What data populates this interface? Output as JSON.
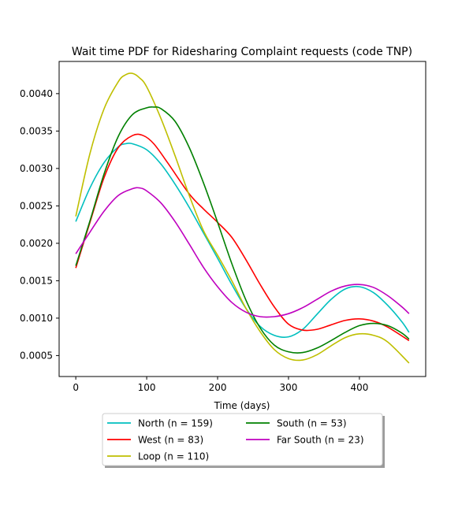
{
  "chart_data": {
    "type": "line",
    "title": "Wait time PDF for Ridesharing Complaint  requests (code TNP)",
    "xlabel": "Time (days)",
    "ylabel": "",
    "xlim": [
      -23.5,
      493.5
    ],
    "ylim": [
      0.00022,
      0.00443
    ],
    "x_ticks": [
      {
        "value": 0,
        "label": "0"
      },
      {
        "value": 100,
        "label": "100"
      },
      {
        "value": 200,
        "label": "200"
      },
      {
        "value": 300,
        "label": "300"
      },
      {
        "value": 400,
        "label": "400"
      }
    ],
    "y_ticks": [
      {
        "value": 0.0005,
        "label": "0.0005"
      },
      {
        "value": 0.001,
        "label": "0.0010"
      },
      {
        "value": 0.0015,
        "label": "0.0015"
      },
      {
        "value": 0.002,
        "label": "0.0020"
      },
      {
        "value": 0.0025,
        "label": "0.0025"
      },
      {
        "value": 0.003,
        "label": "0.0030"
      },
      {
        "value": 0.0035,
        "label": "0.0035"
      },
      {
        "value": 0.004,
        "label": "0.0040"
      }
    ],
    "grid": false,
    "legend_position": "below-center",
    "series": [
      {
        "name": "North (n = 159)",
        "color": "#00bfbf",
        "x": [
          0,
          20,
          40,
          60,
          70,
          80,
          100,
          120,
          140,
          160,
          180,
          200,
          220,
          240,
          260,
          280,
          300,
          320,
          340,
          360,
          380,
          400,
          420,
          440,
          460,
          470
        ],
        "y": [
          0.00229,
          0.00274,
          0.00308,
          0.00329,
          0.00333,
          0.00333,
          0.00325,
          0.00306,
          0.00279,
          0.00248,
          0.00214,
          0.0018,
          0.00145,
          0.00113,
          0.00089,
          0.00077,
          0.00075,
          0.00085,
          0.00105,
          0.00125,
          0.00139,
          0.00142,
          0.00134,
          0.00117,
          0.00095,
          0.00081
        ]
      },
      {
        "name": "West (n = 83)",
        "color": "#ff0000",
        "x": [
          0,
          20,
          40,
          60,
          80,
          95,
          110,
          130,
          160,
          180,
          200,
          220,
          240,
          260,
          280,
          300,
          320,
          340,
          360,
          380,
          400,
          420,
          440,
          470
        ],
        "y": [
          0.00167,
          0.00228,
          0.00288,
          0.00328,
          0.00344,
          0.00344,
          0.00333,
          0.00307,
          0.00266,
          0.00246,
          0.00228,
          0.00208,
          0.00178,
          0.00145,
          0.00115,
          0.00092,
          0.00084,
          0.00085,
          0.00091,
          0.00097,
          0.00099,
          0.00096,
          0.00088,
          0.0007
        ]
      },
      {
        "name": "Loop (n = 110)",
        "color": "#bfbf00",
        "x": [
          0,
          20,
          40,
          60,
          70,
          80,
          90,
          100,
          120,
          140,
          160,
          180,
          200,
          220,
          240,
          260,
          280,
          300,
          320,
          340,
          360,
          380,
          400,
          420,
          440,
          470
        ],
        "y": [
          0.00236,
          0.0032,
          0.0038,
          0.00416,
          0.00425,
          0.00427,
          0.00421,
          0.00409,
          0.00367,
          0.00317,
          0.00264,
          0.00217,
          0.00184,
          0.0015,
          0.00113,
          0.00082,
          0.00058,
          0.00046,
          0.00044,
          0.00051,
          0.00063,
          0.00074,
          0.00079,
          0.00077,
          0.00068,
          0.0004
        ]
      },
      {
        "name": "South (n = 53)",
        "color": "#008000",
        "x": [
          0,
          20,
          40,
          60,
          80,
          100,
          110,
          120,
          140,
          160,
          180,
          200,
          220,
          240,
          260,
          280,
          300,
          320,
          340,
          360,
          380,
          400,
          420,
          440,
          460,
          470
        ],
        "y": [
          0.0017,
          0.0023,
          0.00293,
          0.00343,
          0.00372,
          0.00381,
          0.00382,
          0.0038,
          0.00363,
          0.00328,
          0.00281,
          0.00228,
          0.00173,
          0.00124,
          0.00087,
          0.00064,
          0.00055,
          0.00054,
          0.0006,
          0.0007,
          0.00081,
          0.0009,
          0.00093,
          0.0009,
          0.0008,
          0.00072
        ]
      },
      {
        "name": "Far South (n = 23)",
        "color": "#bf00bf",
        "x": [
          0,
          20,
          40,
          60,
          80,
          90,
          100,
          120,
          140,
          160,
          180,
          200,
          220,
          240,
          260,
          280,
          300,
          320,
          340,
          360,
          380,
          400,
          420,
          440,
          460,
          470
        ],
        "y": [
          0.00186,
          0.00215,
          0.00243,
          0.00264,
          0.00273,
          0.00274,
          0.0027,
          0.00254,
          0.00229,
          0.00199,
          0.00168,
          0.00142,
          0.00121,
          0.00108,
          0.00102,
          0.00102,
          0.00106,
          0.00114,
          0.00125,
          0.00136,
          0.00143,
          0.00145,
          0.00141,
          0.0013,
          0.00115,
          0.00106
        ]
      }
    ]
  }
}
